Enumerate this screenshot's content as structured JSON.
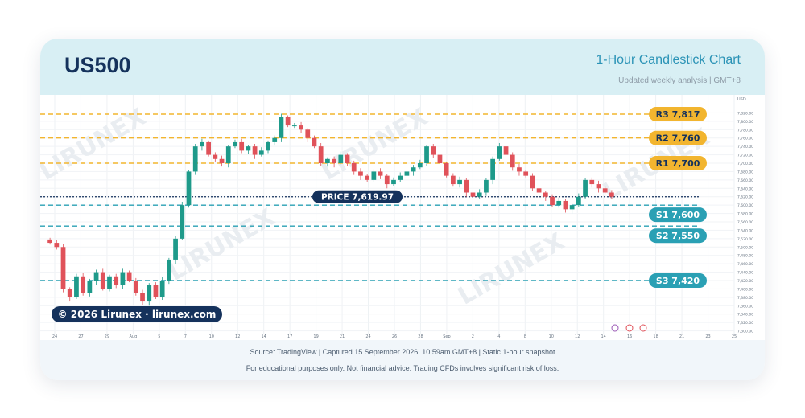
{
  "header": {
    "symbol": "US500",
    "title": "1-Hour Candlestick Chart",
    "subtitle": "Updated weekly analysis | GMT+8"
  },
  "chart_data": {
    "type": "candlestick",
    "axis_unit_label": "USD",
    "ylim": [
      7300,
      7840
    ],
    "y_ticks": [
      "7,820.00",
      "7,800.00",
      "7,780.00",
      "7,760.00",
      "7,740.00",
      "7,720.00",
      "7,700.00",
      "7,680.00",
      "7,660.00",
      "7,640.00",
      "7,620.00",
      "7,600.00",
      "7,580.00",
      "7,560.00",
      "7,540.00",
      "7,520.00",
      "7,500.00",
      "7,480.00",
      "7,460.00",
      "7,440.00",
      "7,420.00",
      "7,400.00",
      "7,380.00",
      "7,360.00",
      "7,340.00",
      "7,320.00",
      "7,300.00"
    ],
    "x_ticks": [
      "24",
      "27",
      "29",
      "Aug",
      "5",
      "7",
      "10",
      "12",
      "14",
      "17",
      "19",
      "21",
      "24",
      "26",
      "28",
      "Sep",
      "2",
      "4",
      "8",
      "10",
      "12",
      "14",
      "16",
      "18",
      "21",
      "23",
      "25"
    ],
    "levels": [
      {
        "label": "R3",
        "value": 7817,
        "display": "7,817",
        "kind": "resistance"
      },
      {
        "label": "R2",
        "value": 7760,
        "display": "7,760",
        "kind": "resistance"
      },
      {
        "label": "R1",
        "value": 7700,
        "display": "7,700",
        "kind": "resistance"
      },
      {
        "label": "PRICE",
        "value": 7619.97,
        "display": "7,619.97",
        "kind": "price"
      },
      {
        "label": "S1",
        "value": 7600,
        "display": "7,600",
        "kind": "support"
      },
      {
        "label": "S2",
        "value": 7550,
        "display": "7,550",
        "kind": "support"
      },
      {
        "label": "S3",
        "value": 7420,
        "display": "7,420",
        "kind": "support"
      }
    ],
    "closes": [
      7510,
      7500,
      7400,
      7380,
      7430,
      7390,
      7420,
      7440,
      7400,
      7430,
      7410,
      7440,
      7420,
      7390,
      7370,
      7410,
      7380,
      7420,
      7470,
      7520,
      7600,
      7680,
      7740,
      7750,
      7720,
      7710,
      7700,
      7740,
      7750,
      7730,
      7740,
      7720,
      7730,
      7750,
      7760,
      7810,
      7790,
      7790,
      7780,
      7760,
      7740,
      7700,
      7710,
      7700,
      7720,
      7700,
      7680,
      7670,
      7660,
      7680,
      7670,
      7650,
      7660,
      7670,
      7680,
      7690,
      7700,
      7740,
      7720,
      7700,
      7670,
      7650,
      7660,
      7630,
      7620,
      7630,
      7660,
      7710,
      7740,
      7720,
      7690,
      7680,
      7670,
      7640,
      7630,
      7620,
      7600,
      7610,
      7590,
      7600,
      7620,
      7660,
      7650,
      7640,
      7630,
      7620
    ],
    "legend": "none",
    "grid": true,
    "watermark": "LIRUNEX",
    "copyright": "© 2026 Lirunex · lirunex.com"
  },
  "footer": {
    "source": "Source: TradingView | Captured 15 September 2026, 10:59am GMT+8 | Static 1-hour snapshot",
    "disclaimer": "For educational purposes only. Not financial advice. Trading CFDs involves significant risk of loss."
  },
  "colors": {
    "bull": "#1e9a8a",
    "bear": "#e0525a",
    "resistance": "#f2b52f",
    "support": "#2aa0b4",
    "price": "#15325c",
    "header_bg": "#d8eff4"
  }
}
